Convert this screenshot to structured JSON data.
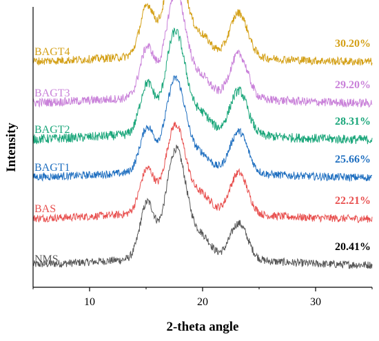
{
  "chart_data": {
    "type": "line",
    "title": "",
    "xlabel": "2-theta angle",
    "ylabel": "Intensity",
    "xlim": [
      5,
      35
    ],
    "x_ticks": [
      10,
      20,
      30
    ],
    "y_ticks_shown": false,
    "grid": false,
    "legend": "inline labels at left of each curve",
    "peak_positions": [
      15.1,
      17.3,
      18.0,
      20.0,
      23.2
    ],
    "series": [
      {
        "name": "NMS",
        "crystallinity": "20.41%",
        "color": "#555555",
        "peak_heights": [
          0.85,
          0.82,
          1.0,
          0.3,
          0.55
        ],
        "noise": 0.12
      },
      {
        "name": "BAS",
        "crystallinity": "22.21%",
        "color": "#e8504f",
        "peak_heights": [
          0.8,
          0.9,
          0.85,
          0.3,
          0.75
        ],
        "noise": 0.14
      },
      {
        "name": "BAGT1",
        "crystallinity": "25.66%",
        "color": "#1f6fc0",
        "peak_heights": [
          0.8,
          0.95,
          0.9,
          0.28,
          0.75
        ],
        "noise": 0.14
      },
      {
        "name": "BAGT2",
        "crystallinity": "28.31%",
        "color": "#1aa67a",
        "peak_heights": [
          0.85,
          1.0,
          0.9,
          0.3,
          0.75
        ],
        "noise": 0.16
      },
      {
        "name": "BAGT3",
        "crystallinity": "29.20%",
        "color": "#c981d9",
        "peak_heights": [
          0.85,
          0.95,
          1.0,
          0.3,
          0.75
        ],
        "noise": 0.15
      },
      {
        "name": "BAGT4",
        "crystallinity": "30.20%",
        "color": "#d4a017",
        "peak_heights": [
          0.85,
          1.0,
          0.9,
          0.3,
          0.75
        ],
        "noise": 0.14
      }
    ]
  }
}
